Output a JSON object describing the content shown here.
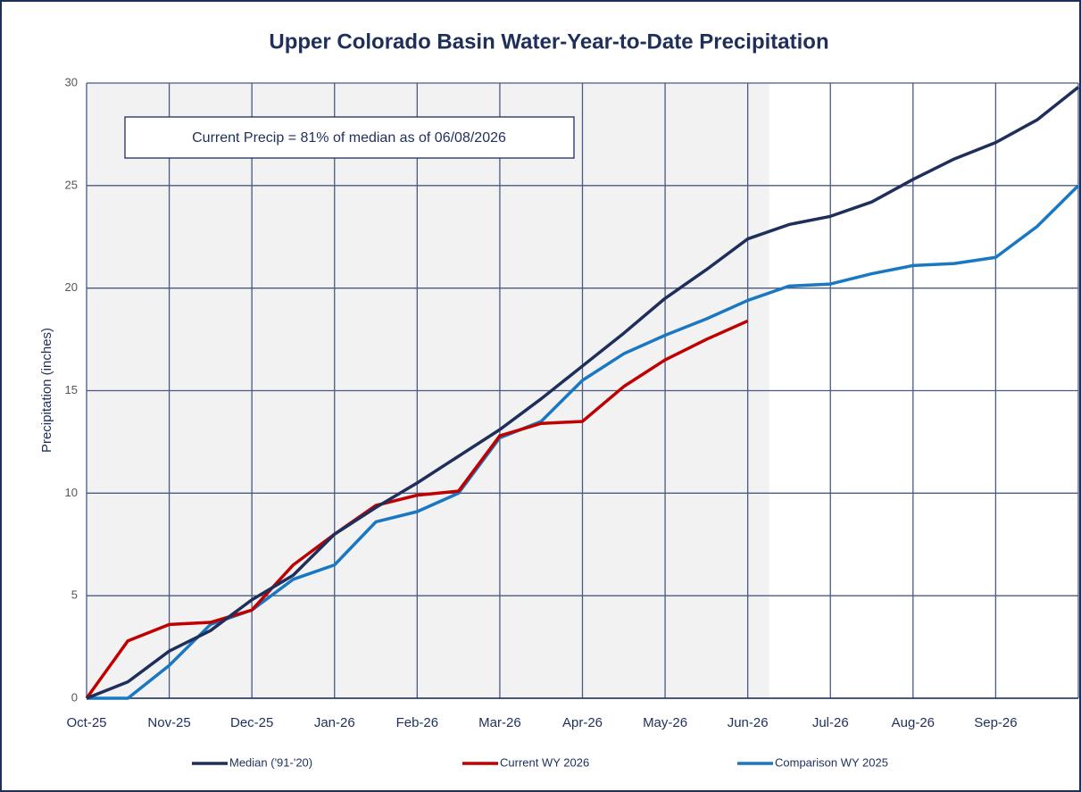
{
  "chart_data": {
    "type": "line",
    "title": "Upper Colorado Basin Water-Year-to-Date Precipitation",
    "annotation": "Current Precip = 81% of median as of 06/08/2026",
    "y_label": "Precipitation (inches)",
    "categories": [
      "Oct-25",
      null,
      "Nov-25",
      null,
      "Dec-25",
      null,
      "Jan-26",
      null,
      "Feb-26",
      null,
      "Mar-26",
      null,
      "Apr-26",
      null,
      "May-26",
      null,
      "Jun-26",
      null,
      "Jul-26",
      null,
      "Aug-26",
      null,
      "Sep-26",
      null,
      null
    ],
    "series": [
      {
        "name": "Median ('91-'20)",
        "color": "#1f2f5c",
        "values": [
          0,
          0.8,
          2.3,
          3.3,
          4.8,
          6.0,
          8.0,
          9.3,
          10.5,
          11.8,
          13.1,
          14.6,
          16.2,
          17.8,
          19.5,
          20.9,
          22.4,
          23.1,
          23.5,
          24.2,
          25.3,
          26.3,
          27.1,
          28.2,
          29.8
        ]
      },
      {
        "name": "Current WY 2026",
        "color": "#c00000",
        "values": [
          0,
          2.8,
          3.6,
          3.7,
          4.3,
          6.5,
          8.0,
          9.4,
          9.9,
          10.1,
          12.8,
          13.4,
          13.5,
          15.2,
          16.5,
          17.5,
          18.4,
          null,
          null,
          null,
          null,
          null,
          null,
          null,
          null
        ]
      },
      {
        "name": "Comparison WY 2025",
        "color": "#1a78c2",
        "values": [
          0,
          0,
          1.6,
          3.6,
          4.3,
          5.8,
          6.5,
          8.6,
          9.1,
          10.0,
          12.7,
          13.5,
          15.5,
          16.8,
          17.7,
          18.5,
          19.4,
          20.1,
          20.2,
          20.7,
          21.1,
          21.2,
          21.5,
          23.0,
          25.0
        ]
      }
    ],
    "ylim": [
      0,
      30
    ],
    "yticks": [
      0,
      5,
      10,
      15,
      20,
      25,
      30
    ],
    "grid": true
  }
}
